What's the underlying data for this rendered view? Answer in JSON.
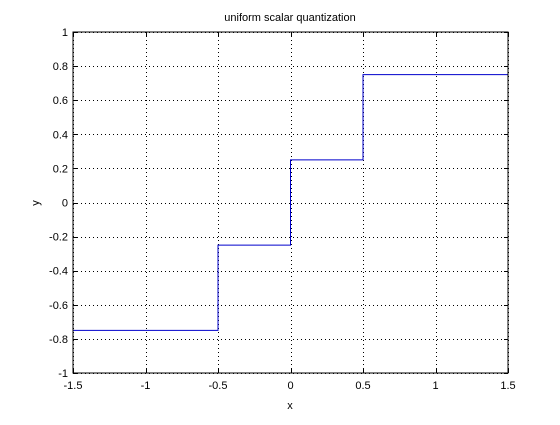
{
  "chart_data": {
    "type": "line",
    "title": "uniform scalar quantization",
    "xlabel": "x",
    "ylabel": "y",
    "xlim": [
      -1.5,
      1.5
    ],
    "ylim": [
      -1,
      1
    ],
    "grid": true,
    "x_ticks": [
      -1.5,
      -1,
      -0.5,
      0,
      0.5,
      1,
      1.5
    ],
    "x_tick_labels": [
      "-1.5",
      "-1",
      "-0.5",
      "0",
      "0.5",
      "1",
      "1.5"
    ],
    "y_ticks": [
      -1,
      -0.8,
      -0.6,
      -0.4,
      -0.2,
      0,
      0.2,
      0.4,
      0.6,
      0.8,
      1
    ],
    "y_tick_labels": [
      "-1",
      "-0.8",
      "-0.6",
      "-0.4",
      "-0.2",
      "0",
      "0.2",
      "0.4",
      "0.6",
      "0.8",
      "1"
    ],
    "series": [
      {
        "color": "#0000cc",
        "x": [
          -1.5,
          -0.5,
          -0.5,
          0,
          0,
          0.5,
          0.5,
          1.5
        ],
        "y": [
          -0.75,
          -0.75,
          -0.25,
          -0.25,
          0.25,
          0.25,
          0.75,
          0.75
        ]
      }
    ]
  }
}
